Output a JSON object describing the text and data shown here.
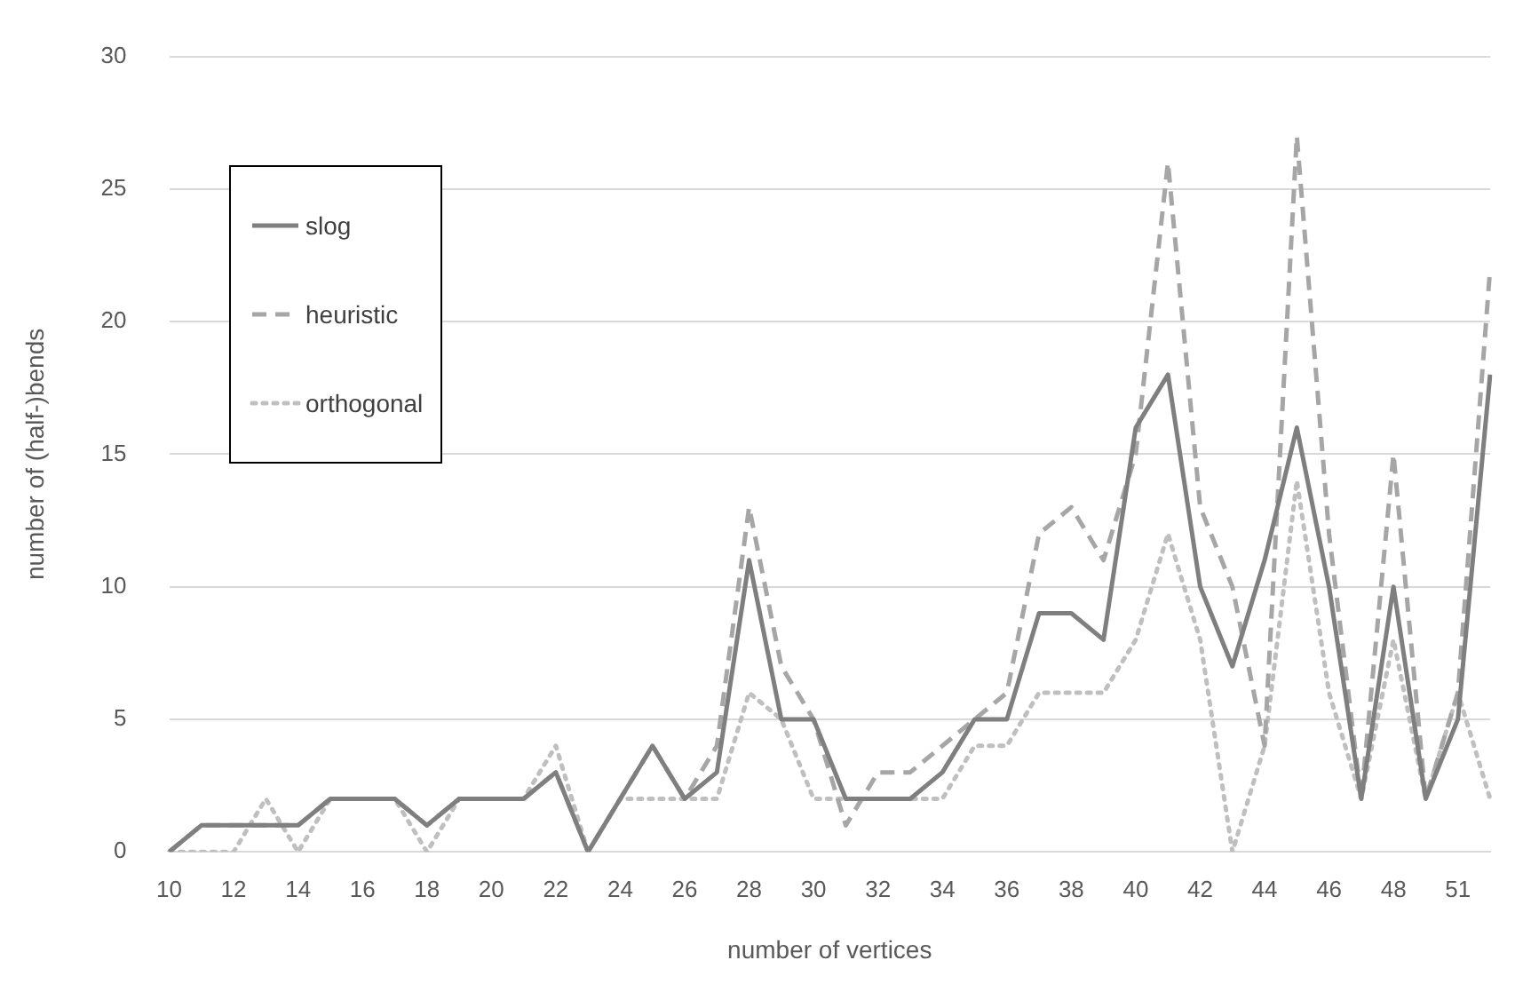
{
  "chart_data": {
    "type": "line",
    "xlabel": "number of vertices",
    "ylabel": "number of (half-)bends",
    "categories": [
      "10",
      null,
      "12",
      null,
      "14",
      null,
      "16",
      null,
      "18",
      null,
      "20",
      null,
      "22",
      null,
      "24",
      null,
      "26",
      null,
      "28",
      null,
      "30",
      null,
      "32",
      null,
      "34",
      null,
      "36",
      null,
      "38",
      null,
      "40",
      null,
      "42",
      null,
      "44",
      null,
      "46",
      null,
      "48",
      null,
      "51",
      null
    ],
    "ylim": [
      0,
      30
    ],
    "yticks": [
      0,
      5,
      10,
      15,
      20,
      25,
      30
    ],
    "grid": "y",
    "legend": "top left",
    "marker": "none",
    "series": [
      {
        "name": "slog",
        "color": "#7f7f7f",
        "line_style": "solid",
        "values": [
          0,
          1,
          1,
          1,
          1,
          2,
          2,
          2,
          1,
          2,
          2,
          2,
          3,
          0,
          2,
          4,
          2,
          3,
          11,
          5,
          5,
          2,
          2,
          2,
          3,
          5,
          5,
          9,
          9,
          8,
          16,
          18,
          10,
          7,
          11,
          16,
          10,
          2,
          10,
          2,
          5,
          18
        ]
      },
      {
        "name": "heuristic",
        "color": "#a6a6a6",
        "line_style": "dashed",
        "values": [
          0,
          1,
          1,
          1,
          1,
          2,
          2,
          2,
          1,
          2,
          2,
          2,
          3,
          0,
          2,
          4,
          2,
          4,
          13,
          7,
          5,
          1,
          3,
          3,
          4,
          5,
          6,
          12,
          13,
          11,
          15,
          26,
          13,
          10,
          4,
          27,
          12,
          2,
          15,
          2,
          6,
          22
        ]
      },
      {
        "name": "orthogonal",
        "color": "#bfbfbf",
        "line_style": "dotted",
        "values": [
          0,
          0,
          0,
          2,
          0,
          2,
          2,
          2,
          0,
          2,
          2,
          2,
          4,
          0,
          2,
          2,
          2,
          2,
          6,
          5,
          2,
          2,
          2,
          2,
          2,
          4,
          4,
          6,
          6,
          6,
          8,
          12,
          8,
          0,
          4,
          14,
          6,
          2,
          8,
          2,
          6,
          2
        ]
      }
    ]
  }
}
